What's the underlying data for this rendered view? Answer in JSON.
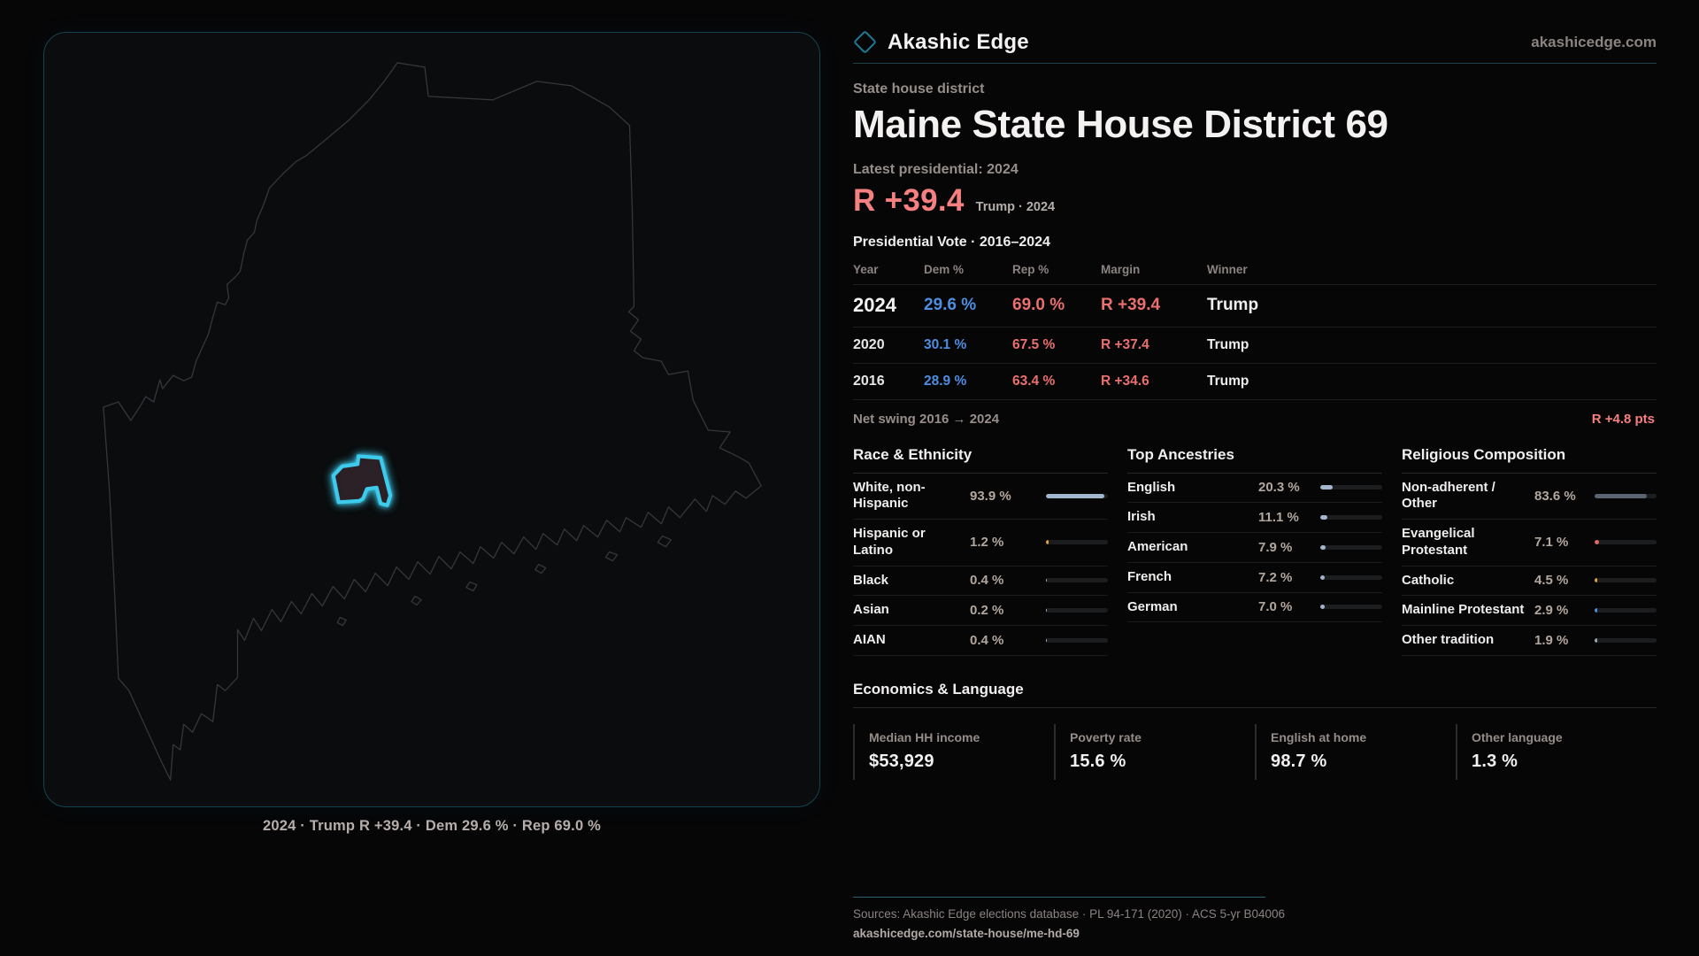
{
  "brand": {
    "name": "Akashic Edge",
    "site": "akashicedge.com"
  },
  "map": {
    "caption": "2024 · Trump R +39.4 · Dem 29.6 % · Rep 69.0 %",
    "district_color": "#3dcbec",
    "outline_color": "#34383c"
  },
  "header": {
    "kicker": "State house district",
    "title": "Maine State House District 69",
    "latest_label": "Latest presidential: 2024",
    "margin_value": "R +39.4",
    "margin_detail": "Trump · 2024"
  },
  "vote_table": {
    "title": "Presidential Vote · 2016–2024",
    "columns": [
      "Year",
      "Dem %",
      "Rep %",
      "Margin",
      "Winner"
    ],
    "rows": [
      {
        "year": "2024",
        "dem": "29.6 %",
        "rep": "69.0 %",
        "margin": "R +39.4",
        "winner": "Trump"
      },
      {
        "year": "2020",
        "dem": "30.1 %",
        "rep": "67.5 %",
        "margin": "R +37.4",
        "winner": "Trump"
      },
      {
        "year": "2016",
        "dem": "28.9 %",
        "rep": "63.4 %",
        "margin": "R +34.6",
        "winner": "Trump"
      }
    ],
    "net_swing_label": "Net swing 2016 → 2024",
    "net_swing_value": "R +4.8 pts"
  },
  "race": {
    "title": "Race & Ethnicity",
    "rows": [
      {
        "label": "White, non-Hispanic",
        "value": "93.9 %",
        "pct": 93.9,
        "color": "#a2b6cd"
      },
      {
        "label": "Hispanic or Latino",
        "value": "1.2 %",
        "pct": 1.2,
        "color": "#dfa23c"
      },
      {
        "label": "Black",
        "value": "0.4 %",
        "pct": 0.4,
        "color": "#a2b6cd"
      },
      {
        "label": "Asian",
        "value": "0.2 %",
        "pct": 0.2,
        "color": "#a2b6cd"
      },
      {
        "label": "AIAN",
        "value": "0.4 %",
        "pct": 0.4,
        "color": "#a2b6cd"
      }
    ]
  },
  "ancestries": {
    "title": "Top Ancestries",
    "rows": [
      {
        "label": "English",
        "value": "20.3 %",
        "pct": 20.3,
        "color": "#a2b6cd"
      },
      {
        "label": "Irish",
        "value": "11.1 %",
        "pct": 11.1,
        "color": "#a2b6cd"
      },
      {
        "label": "American",
        "value": "7.9 %",
        "pct": 7.9,
        "color": "#a2b6cd"
      },
      {
        "label": "French",
        "value": "7.2 %",
        "pct": 7.2,
        "color": "#a2b6cd"
      },
      {
        "label": "German",
        "value": "7.0 %",
        "pct": 7.0,
        "color": "#a2b6cd"
      }
    ]
  },
  "religion": {
    "title": "Religious Composition",
    "rows": [
      {
        "label": "Non-adherent / Other",
        "value": "83.6 %",
        "pct": 83.6,
        "color": "#5b6472"
      },
      {
        "label": "Evangelical Protestant",
        "value": "7.1 %",
        "pct": 7.1,
        "color": "#e06a6a"
      },
      {
        "label": "Catholic",
        "value": "4.5 %",
        "pct": 4.5,
        "color": "#dfa23c"
      },
      {
        "label": "Mainline Protestant",
        "value": "2.9 %",
        "pct": 2.9,
        "color": "#4e8ee1"
      },
      {
        "label": "Other tradition",
        "value": "1.9 %",
        "pct": 1.9,
        "color": "#9fa6ad"
      }
    ]
  },
  "economics": {
    "title": "Economics & Language",
    "stats": [
      {
        "label": "Median HH income",
        "value": "$53,929"
      },
      {
        "label": "Poverty rate",
        "value": "15.6 %"
      },
      {
        "label": "English at home",
        "value": "98.7 %"
      },
      {
        "label": "Other language",
        "value": "1.3 %"
      }
    ]
  },
  "footer": {
    "sources": "Sources: Akashic Edge elections database · PL 94-171 (2020) · ACS 5-yr B04006",
    "url": "akashicedge.com/state-house/me-hd-69"
  }
}
